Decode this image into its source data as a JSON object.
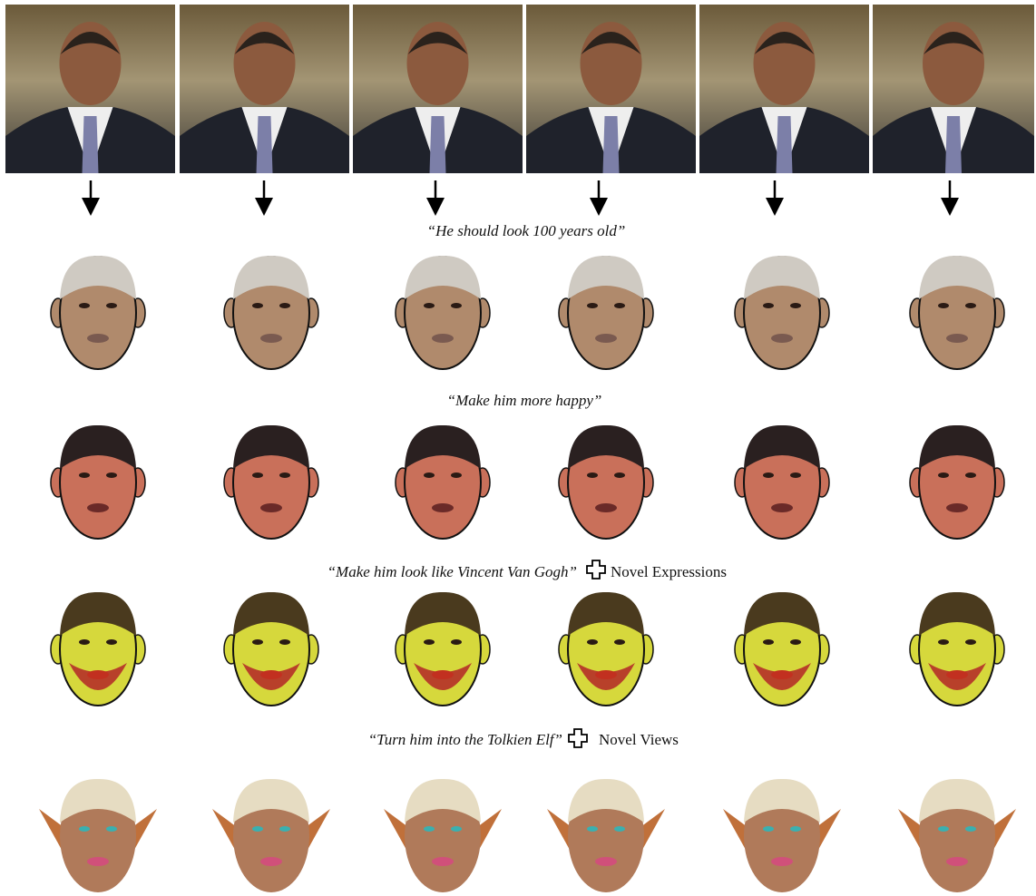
{
  "captions": [
    {
      "text": "“He should look 100 years old”"
    },
    {
      "text": "“Make him more happy”"
    },
    {
      "text": "“Make him look like Vincent Van Gogh”",
      "suffix": "Novel Expressions"
    },
    {
      "text": "“Turn him into the Tolkien Elf”",
      "suffix": "Novel Views"
    }
  ]
}
